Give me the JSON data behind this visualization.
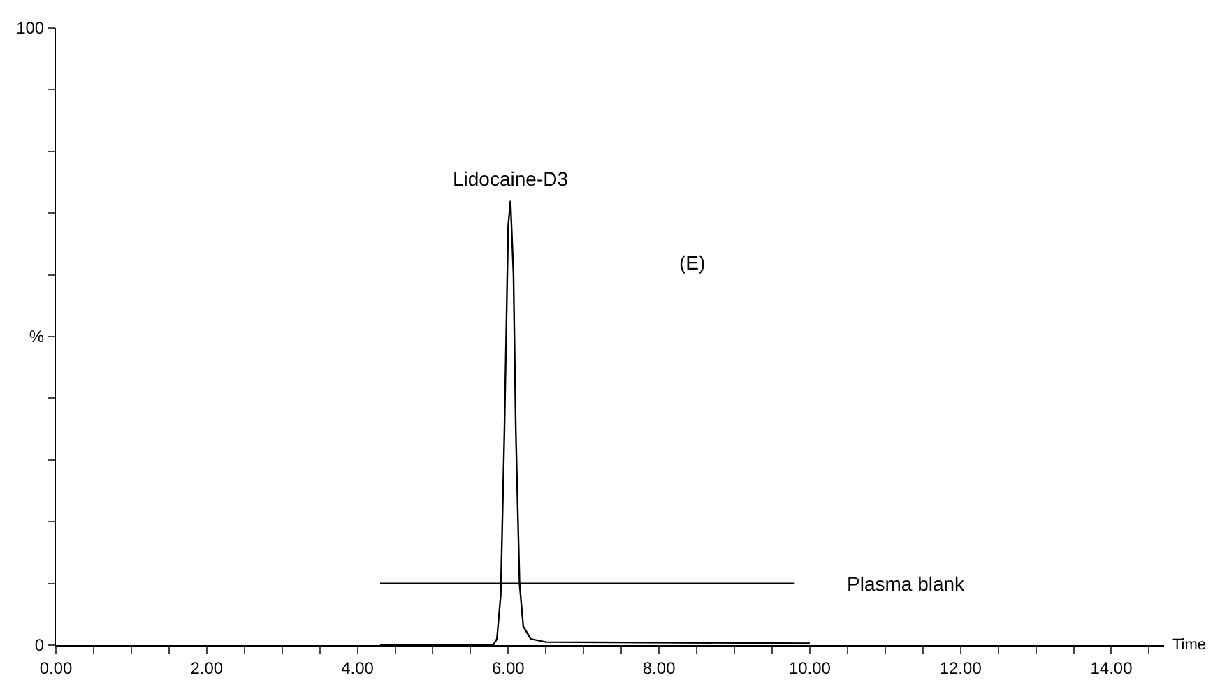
{
  "chart_data": {
    "type": "line",
    "xlabel": "Time",
    "xlim": [
      0,
      14.7
    ],
    "ylim": [
      0,
      100
    ],
    "xticks": [
      {
        "value": 0,
        "label": "0.00"
      },
      {
        "value": 0.5,
        "label": null
      },
      {
        "value": 1,
        "label": null
      },
      {
        "value": 1.5,
        "label": null
      },
      {
        "value": 2,
        "label": "2.00"
      },
      {
        "value": 2.5,
        "label": null
      },
      {
        "value": 3,
        "label": null
      },
      {
        "value": 3.5,
        "label": null
      },
      {
        "value": 4,
        "label": "4.00"
      },
      {
        "value": 4.5,
        "label": null
      },
      {
        "value": 5,
        "label": null
      },
      {
        "value": 5.5,
        "label": null
      },
      {
        "value": 6,
        "label": "6.00"
      },
      {
        "value": 6.5,
        "label": null
      },
      {
        "value": 7,
        "label": null
      },
      {
        "value": 7.5,
        "label": null
      },
      {
        "value": 8,
        "label": "8.00"
      },
      {
        "value": 8.5,
        "label": null
      },
      {
        "value": 9,
        "label": null
      },
      {
        "value": 9.5,
        "label": null
      },
      {
        "value": 10,
        "label": "10.00"
      },
      {
        "value": 10.5,
        "label": null
      },
      {
        "value": 11,
        "label": null
      },
      {
        "value": 11.5,
        "label": null
      },
      {
        "value": 12,
        "label": "12.00"
      },
      {
        "value": 12.5,
        "label": null
      },
      {
        "value": 13,
        "label": null
      },
      {
        "value": 13.5,
        "label": null
      },
      {
        "value": 14,
        "label": "14.00"
      },
      {
        "value": 14.5,
        "label": null
      }
    ],
    "yticks": [
      0,
      {
        "value": 10,
        "label": null
      },
      {
        "value": 20,
        "label": null
      },
      {
        "value": 30,
        "label": null
      },
      {
        "value": 40,
        "label": null
      },
      {
        "value": 50,
        "label": "%"
      },
      {
        "value": 60,
        "label": null
      },
      {
        "value": 70,
        "label": null
      },
      {
        "value": 80,
        "label": null
      },
      {
        "value": 90,
        "label": null
      },
      100
    ],
    "series": [
      {
        "name": "Lidocaine-D3",
        "color": "#000000",
        "x": [
          4.3,
          5.8,
          5.85,
          5.9,
          5.95,
          6.0,
          6.03,
          6.07,
          6.1,
          6.15,
          6.2,
          6.3,
          6.5,
          10.0
        ],
        "values": [
          0,
          0,
          1,
          8,
          35,
          68,
          72,
          60,
          35,
          10,
          3,
          1,
          0.5,
          0.3
        ]
      },
      {
        "name": "Plasma blank",
        "color": "#000000",
        "x": [
          4.3,
          9.8
        ],
        "values": [
          10,
          10
        ]
      }
    ],
    "annotations": [
      "(E)"
    ],
    "legend": false,
    "marker": "none",
    "line_style": "solid"
  }
}
